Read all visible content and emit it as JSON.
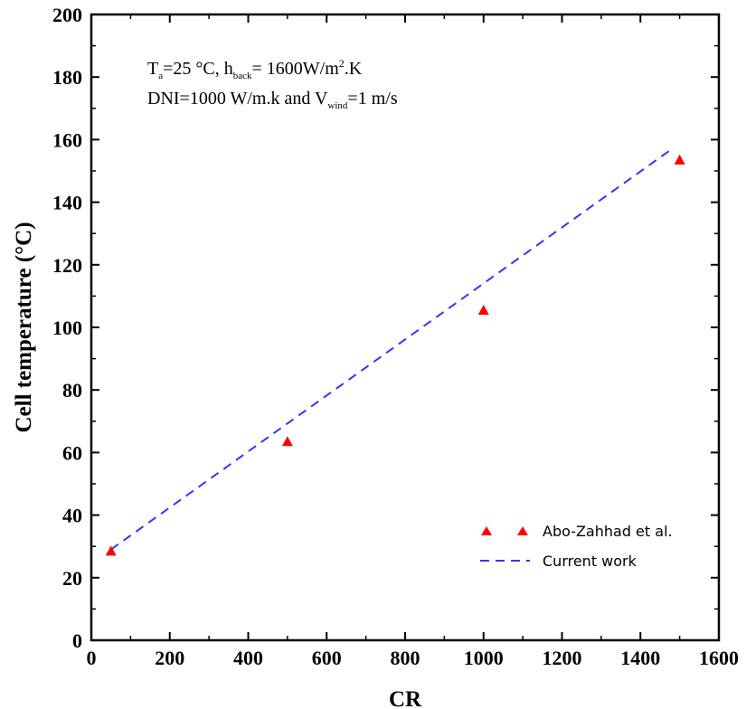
{
  "chart_data": {
    "type": "scatter",
    "xlabel": "CR",
    "ylabel": "Cell temperature (°C)",
    "xlim": [
      0,
      1600
    ],
    "ylim": [
      0,
      200
    ],
    "xticks": [
      0,
      200,
      400,
      600,
      800,
      1000,
      1200,
      1400,
      1600
    ],
    "yticks": [
      0,
      20,
      40,
      60,
      80,
      100,
      120,
      140,
      160,
      180,
      200
    ],
    "grid": false,
    "legend_position": "bottom-right",
    "annotation": {
      "line1": {
        "t": "T",
        "t_sub": "a",
        "mid": "=25 °C, h",
        "h_sub": "back",
        "eq": "= 1600W/m",
        "sup": "2",
        "end": ".K"
      },
      "line2": {
        "start": "DNI=1000 W/m.k and V",
        "v_sub": "wind",
        "end": "=1 m/s"
      }
    },
    "series": [
      {
        "name": "Abo-Zahhad et al.",
        "kind": "scatter",
        "marker": "triangle",
        "color": "#ff0000",
        "points": [
          [
            50,
            28.5
          ],
          [
            500,
            63.5
          ],
          [
            1000,
            105.5
          ],
          [
            1500,
            153.5
          ]
        ]
      },
      {
        "name": "Current work",
        "kind": "line",
        "style": "dashed",
        "color": "#3333ff",
        "points": [
          [
            50,
            29
          ],
          [
            1480,
            157
          ]
        ]
      }
    ]
  }
}
